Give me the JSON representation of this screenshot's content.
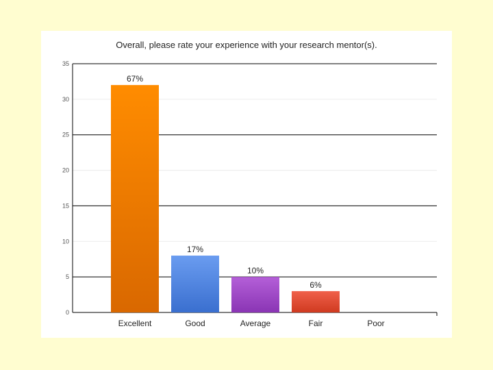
{
  "chart_data": {
    "type": "bar",
    "title": "Overall, please rate your experience with your research mentor(s).",
    "xlabel": "",
    "ylabel": "",
    "categories": [
      "Excellent",
      "Good",
      "Average",
      "Fair",
      "Poor"
    ],
    "values": [
      32,
      8,
      5,
      3,
      0
    ],
    "data_labels": [
      "67%",
      "17%",
      "10%",
      "6%",
      ""
    ],
    "colors": {
      "Excellent": [
        "#ff8c00",
        "#d96800"
      ],
      "Good": [
        "#6a9cf0",
        "#3a6fcf"
      ],
      "Average": [
        "#b45fd8",
        "#8a35b4"
      ],
      "Fair": [
        "#f0604a",
        "#cf3a20"
      ],
      "Poor": [
        "#cccccc",
        "#aaaaaa"
      ]
    },
    "ylim": [
      0,
      35
    ],
    "yticks": [
      0,
      5,
      10,
      15,
      20,
      25,
      30,
      35
    ],
    "grid": true,
    "legend": "none"
  }
}
